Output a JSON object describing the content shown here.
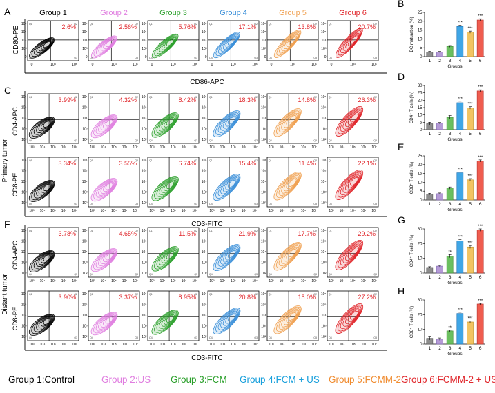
{
  "colors": [
    "#000000",
    "#e07ee0",
    "#2ca02c",
    "#3a8fd9",
    "#f0a050",
    "#e0262b"
  ],
  "bar_colors": [
    "#8c8c8c",
    "#b59bd6",
    "#6bbf5f",
    "#3fa6e6",
    "#f2c462",
    "#ef5d4f"
  ],
  "bar_edge": [
    "#555555",
    "#7a5fb0",
    "#3e8a33",
    "#1d6fb0",
    "#c08f20",
    "#b8302a"
  ],
  "groups": [
    "Group 1",
    "Group 2",
    "Group 3",
    "Group 4",
    "Group 5",
    "Group 6"
  ],
  "panels": {
    "A": {
      "letter": "A",
      "ylabel": "CD80-PE",
      "xlabel": "CD86-APC",
      "percents": [
        "2.6%",
        "2.56%",
        "5.76%",
        "17.1%",
        "13.8%",
        "20.7%"
      ]
    },
    "C": {
      "letter": "C",
      "side_label": "Primary tumor",
      "xlabel": "CD3-FITC",
      "rows": [
        {
          "ylabel": "CD4-APC",
          "percents": [
            "3.99%",
            "4.32%",
            "8.42%",
            "18.3%",
            "14.8%",
            "26.3%"
          ]
        },
        {
          "ylabel": "CD8-PE",
          "percents": [
            "3.34%",
            "3.55%",
            "6.74%",
            "15.4%",
            "11.4%",
            "22.1%"
          ]
        }
      ]
    },
    "F": {
      "letter": "F",
      "side_label": "Distant tumor",
      "xlabel": "CD3-FITC",
      "rows": [
        {
          "ylabel": "CD4-APC",
          "percents": [
            "3.78%",
            "4.65%",
            "11.5%",
            "21.9%",
            "17.7%",
            "29.2%"
          ]
        },
        {
          "ylabel": "CD8-PE",
          "percents": [
            "3.90%",
            "3.37%",
            "8.95%",
            "20.8%",
            "15.0%",
            "27.2%"
          ]
        }
      ]
    }
  },
  "flow_ticks": {
    "A_x": [
      "0",
      "10⁴",
      "10⁶"
    ],
    "A_y": [
      "10⁶",
      "10⁵",
      "10⁴",
      "10³",
      "0"
    ],
    "C_x": [
      "10³",
      "10⁴",
      "10⁵",
      "10⁶",
      "10⁷"
    ],
    "C_y": [
      "10⁶",
      "10⁵",
      "10⁴",
      "10³",
      "10²"
    ]
  },
  "quadrant_labels": [
    "Q1",
    "Q2",
    "Q3",
    "Q4"
  ],
  "chart_data": [
    {
      "letter": "B",
      "type": "bar",
      "title": "",
      "xlabel": "Groups",
      "ylabel": "DC maturation (%)",
      "categories": [
        "1",
        "2",
        "3",
        "4",
        "5",
        "6"
      ],
      "values": [
        2.6,
        2.56,
        5.76,
        17.1,
        13.8,
        20.7
      ],
      "errors": [
        0.3,
        0.3,
        0.5,
        0.7,
        0.6,
        0.7
      ],
      "significance": [
        "",
        "",
        "",
        "***",
        "***",
        "***"
      ],
      "ylim": [
        0,
        25
      ],
      "yticks": [
        0,
        5,
        10,
        15,
        20,
        25
      ]
    },
    {
      "letter": "D",
      "type": "bar",
      "title": "",
      "xlabel": "Groups",
      "ylabel": "CD4⁺ T cells (%)",
      "categories": [
        "1",
        "2",
        "3",
        "4",
        "5",
        "6"
      ],
      "values": [
        3.99,
        4.32,
        8.42,
        18.3,
        14.8,
        26.3
      ],
      "errors": [
        1.0,
        0.5,
        1.2,
        1.0,
        0.8,
        0.8
      ],
      "significance": [
        "",
        "",
        "",
        "***",
        "***",
        "***"
      ],
      "ylim": [
        0,
        30
      ],
      "yticks": [
        0,
        5,
        10,
        15,
        20,
        25,
        30
      ]
    },
    {
      "letter": "E",
      "type": "bar",
      "title": "",
      "xlabel": "Groups",
      "ylabel": "CD8⁺ T cells (%)",
      "categories": [
        "1",
        "2",
        "3",
        "4",
        "5",
        "6"
      ],
      "values": [
        3.34,
        3.55,
        6.74,
        15.4,
        11.4,
        22.1
      ],
      "errors": [
        0.4,
        0.4,
        0.6,
        0.5,
        0.7,
        0.6
      ],
      "significance": [
        "",
        "",
        "",
        "***",
        "***",
        "***"
      ],
      "ylim": [
        0,
        25
      ],
      "yticks": [
        0,
        5,
        10,
        15,
        20,
        25
      ]
    },
    {
      "letter": "G",
      "type": "bar",
      "title": "",
      "xlabel": "Groups",
      "ylabel": "CD4⁺ T cells (%)",
      "categories": [
        "1",
        "2",
        "3",
        "4",
        "5",
        "6"
      ],
      "values": [
        3.78,
        4.65,
        11.5,
        21.9,
        17.7,
        29.2
      ],
      "errors": [
        0.5,
        0.5,
        1.0,
        0.8,
        1.0,
        0.8
      ],
      "significance": [
        "",
        "",
        "**",
        "***",
        "***",
        "***"
      ],
      "ylim": [
        0,
        30
      ],
      "yticks": [
        0,
        10,
        20,
        30
      ]
    },
    {
      "letter": "H",
      "type": "bar",
      "title": "",
      "xlabel": "Groups",
      "ylabel": "CD8⁺ T cells (%)",
      "categories": [
        "1",
        "2",
        "3",
        "4",
        "5",
        "6"
      ],
      "values": [
        3.9,
        3.37,
        8.95,
        20.8,
        15.0,
        27.2
      ],
      "errors": [
        1.0,
        0.8,
        0.5,
        0.8,
        0.6,
        0.5
      ],
      "significance": [
        "",
        "",
        "**",
        "***",
        "***",
        "***"
      ],
      "ylim": [
        0,
        30
      ],
      "yticks": [
        0,
        10,
        20,
        30
      ]
    }
  ],
  "legend": {
    "items": [
      "Group 1:Control",
      "Group 2:US",
      "Group 3:FCM",
      "Group 4:FCM + US",
      "Group 5:FCMM-2",
      "Group 6:FCMM-2 + US"
    ],
    "colors": [
      "#000000",
      "#e07ee0",
      "#2ca02c",
      "#19a0dc",
      "#f08c30",
      "#e0262b"
    ]
  }
}
